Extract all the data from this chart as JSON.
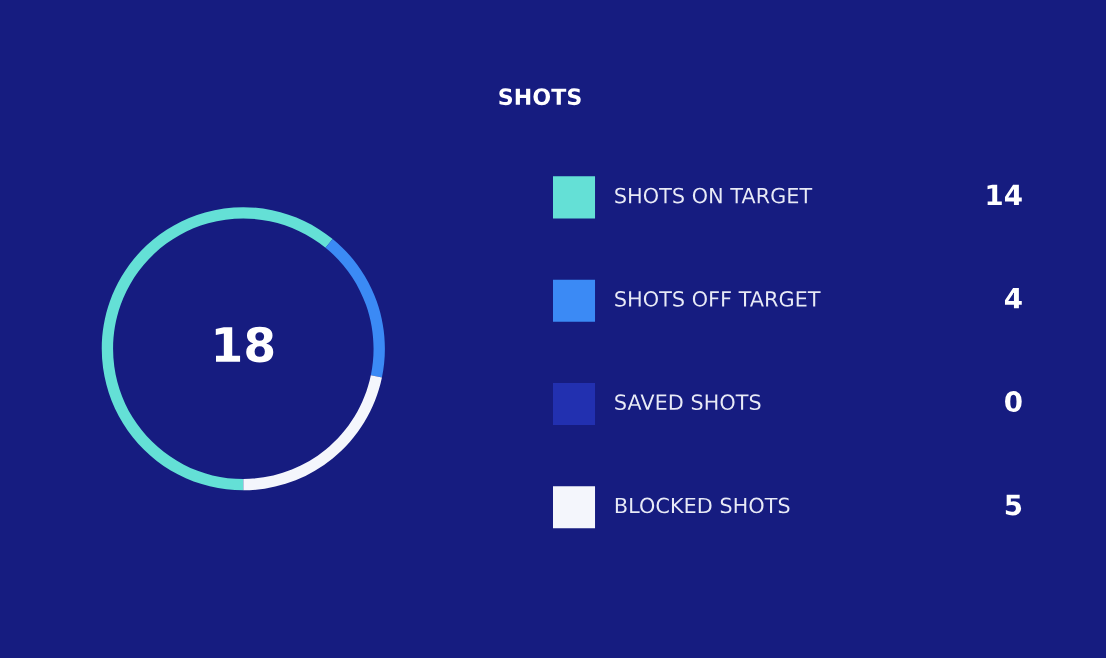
{
  "chart_data": {
    "type": "donut",
    "title": "SHOTS",
    "categories": [
      "SHOTS ON TARGET",
      "SHOTS OFF TARGET",
      "SAVED SHOTS",
      "BLOCKED SHOTS"
    ],
    "values": [
      14,
      4,
      0,
      5
    ],
    "value_labels": [
      "14",
      "4",
      "0",
      "5"
    ],
    "colors": [
      "#64e0d6",
      "#3b8af5",
      "#2230b0",
      "#f4f6fc"
    ],
    "annotations": [
      "18"
    ],
    "legend": "right"
  }
}
